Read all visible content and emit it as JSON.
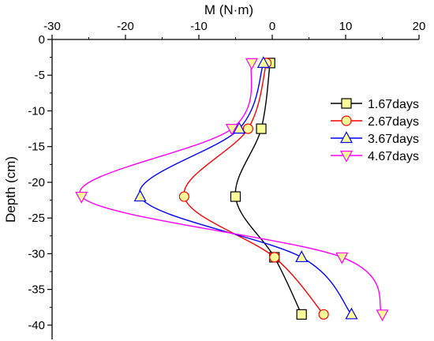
{
  "chart_data": {
    "type": "line",
    "xlabel": "M (N·m)",
    "ylabel": "Depth (cm)",
    "xlim": [
      -30,
      20
    ],
    "ylim": [
      -42,
      0
    ],
    "xticks": [
      -30,
      -20,
      -10,
      0,
      10,
      20
    ],
    "yticks": [
      0,
      -5,
      -10,
      -15,
      -20,
      -25,
      -30,
      -35,
      -40
    ],
    "x_axis_position": "top",
    "grid": false,
    "legend_position": "right",
    "series": [
      {
        "name": "1.67days",
        "marker": "square",
        "color": "#000000",
        "fill": "#ffff99",
        "points": [
          [
            -0.3,
            -3.3
          ],
          [
            -1.5,
            -12.5
          ],
          [
            -5.0,
            -22.0
          ],
          [
            0.3,
            -30.5
          ],
          [
            4.0,
            -38.5
          ]
        ]
      },
      {
        "name": "2.67days",
        "marker": "circle",
        "color": "#ff0000",
        "fill": "#ffff99",
        "points": [
          [
            -0.8,
            -3.3
          ],
          [
            -3.3,
            -12.5
          ],
          [
            -12.0,
            -22.0
          ],
          [
            0.3,
            -30.5
          ],
          [
            7.0,
            -38.5
          ]
        ]
      },
      {
        "name": "3.67days",
        "marker": "triangle-up",
        "color": "#0000ff",
        "fill": "#ffff99",
        "points": [
          [
            -1.2,
            -3.3
          ],
          [
            -4.5,
            -12.5
          ],
          [
            -18.0,
            -22.0
          ],
          [
            4.0,
            -30.5
          ],
          [
            10.8,
            -38.5
          ]
        ]
      },
      {
        "name": "4.67days",
        "marker": "triangle-down",
        "color": "#ff00ff",
        "fill": "#ffff99",
        "points": [
          [
            -2.8,
            -3.3
          ],
          [
            -5.5,
            -12.5
          ],
          [
            -26.0,
            -22.0
          ],
          [
            9.5,
            -30.5
          ],
          [
            15.0,
            -38.5
          ]
        ]
      }
    ]
  }
}
